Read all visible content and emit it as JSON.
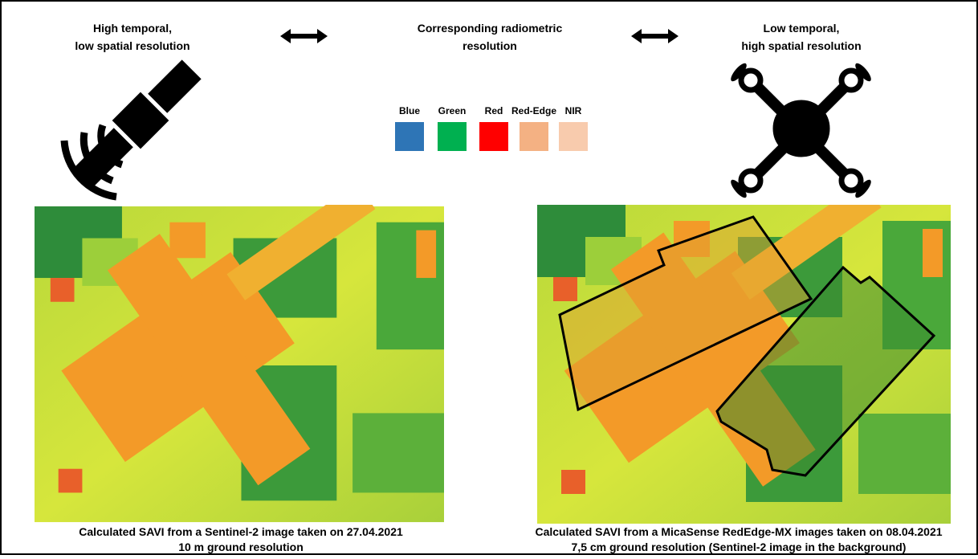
{
  "header": {
    "left": [
      "High temporal,",
      "low spatial resolution"
    ],
    "center": [
      "Corresponding radiometric",
      "resolution"
    ],
    "right": [
      "Low temporal,",
      "high spatial resolution"
    ]
  },
  "bands": [
    {
      "name": "Blue",
      "color": "#2e75b6"
    },
    {
      "name": "Green",
      "color": "#00b050"
    },
    {
      "name": "Red",
      "color": "#ff0000"
    },
    {
      "name": "Red-Edge",
      "color": "#f4b183"
    },
    {
      "name": "NIR",
      "color": "#f8cbad"
    }
  ],
  "panels": [
    {
      "caption": [
        "Calculated SAVI from a Sentinel-2 image taken on 27.04.2021",
        "10 m ground resolution"
      ]
    },
    {
      "caption": [
        "Calculated SAVI from a MicaSense RedEdge-MX images taken on 08.04.2021",
        "7,5 cm ground resolution (Sentinel-2 image in the background)"
      ]
    }
  ]
}
